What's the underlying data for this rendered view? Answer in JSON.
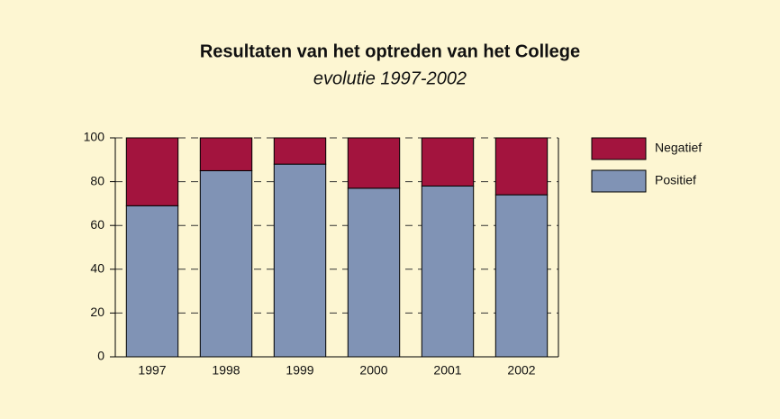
{
  "chart_data": {
    "type": "stacked_bar",
    "title": "Resultaten van het optreden van het College",
    "subtitle": "evolutie 1997-2002",
    "categories": [
      "1997",
      "1998",
      "1999",
      "2000",
      "2001",
      "2002"
    ],
    "series": [
      {
        "name": "Positief",
        "color": "#8093b5",
        "values": [
          69,
          85,
          88,
          77,
          78,
          74
        ]
      },
      {
        "name": "Negatief",
        "color": "#a3143e",
        "values": [
          31,
          15,
          12,
          23,
          22,
          26
        ]
      }
    ],
    "ylim": [
      0,
      100
    ],
    "yticks": [
      0,
      20,
      40,
      60,
      80,
      100
    ],
    "grid": true,
    "legend": "right"
  }
}
